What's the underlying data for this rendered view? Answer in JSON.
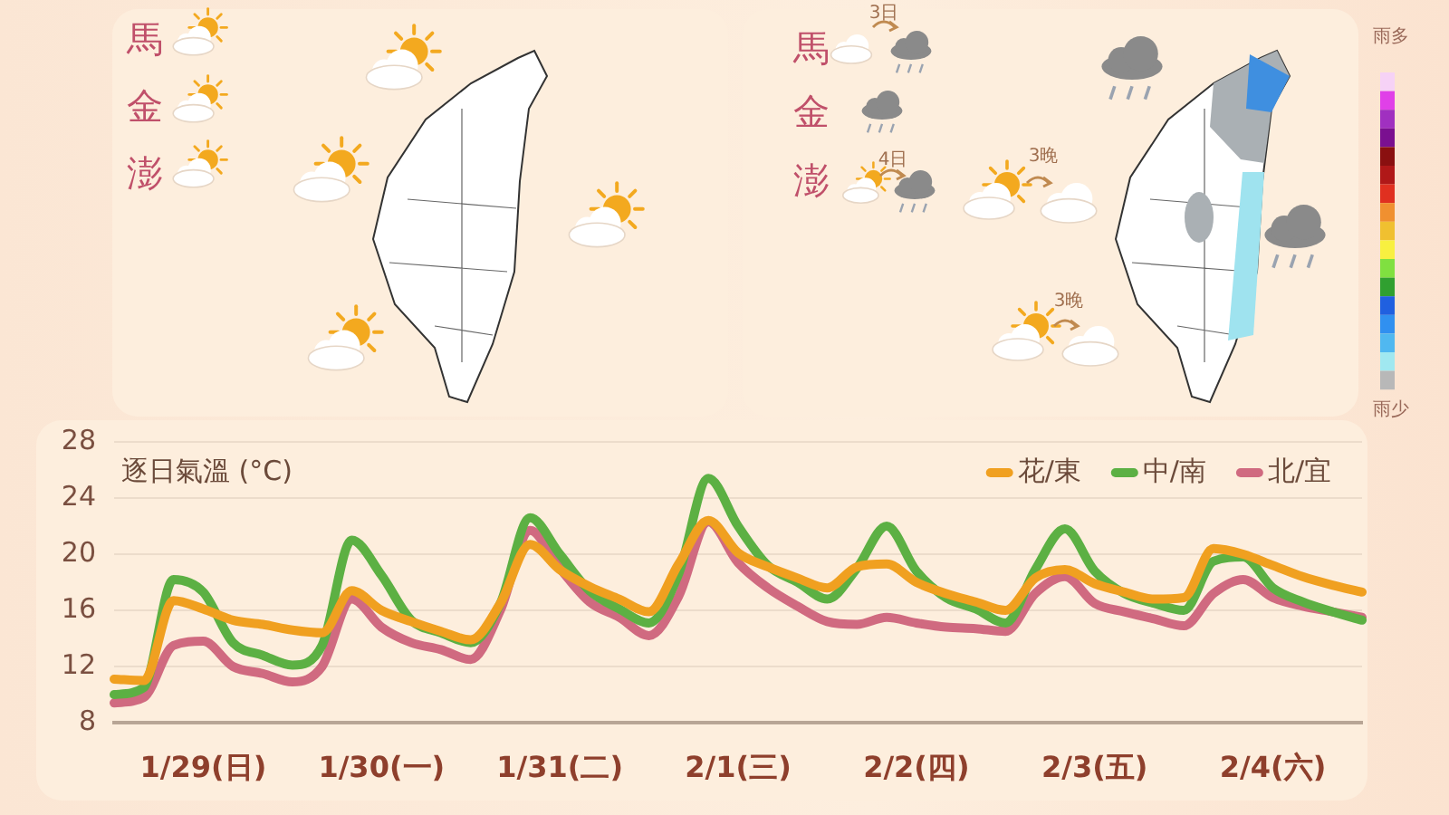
{
  "chart_data": {
    "type": "line",
    "ylabel": "逐日氣溫 (°C)",
    "categories": [
      null,
      null,
      null,
      "1/29(日)",
      null,
      null,
      null,
      null,
      null,
      "1/30(一)",
      null,
      null,
      null,
      null,
      null,
      "1/31(二)",
      null,
      null,
      null,
      null,
      null,
      "2/1(三)",
      null,
      null,
      null,
      null,
      null,
      "2/2(四)",
      null,
      null,
      null,
      null,
      null,
      "2/3(五)",
      null,
      null,
      null,
      null,
      null,
      "2/4(六)",
      null,
      null,
      null
    ],
    "ylim": [
      8,
      28
    ],
    "yticks": [
      8,
      12,
      16,
      20,
      24,
      28
    ],
    "grid": "y",
    "legend": "top right",
    "marker": "none",
    "line_style": "solid",
    "annotations": [
      "馬",
      "金",
      "澎",
      "馬",
      "金",
      "澎",
      "3日",
      "4日",
      "3晚",
      "3晚",
      "雨多",
      "雨少"
    ],
    "series": [
      {
        "name": "花/東",
        "color": "#f0a020",
        "values": [
          11.1,
          11.0,
          16.7,
          16.1,
          15.3,
          15.0,
          14.6,
          14.4,
          17.4,
          16.0,
          15.2,
          14.5,
          13.9,
          16.5,
          20.7,
          18.9,
          17.7,
          16.8,
          15.9,
          19.3,
          22.4,
          20.1,
          19.1,
          18.3,
          17.6,
          19.1,
          19.3,
          18.0,
          17.2,
          16.6,
          16.0,
          18.3,
          18.9,
          17.9,
          17.3,
          16.8,
          16.9,
          20.4,
          20.0,
          19.2,
          18.4,
          17.8,
          17.3
        ]
      },
      {
        "name": "中/南",
        "color": "#5cb043",
        "values": [
          10.0,
          10.5,
          18.2,
          17.3,
          13.7,
          12.8,
          12.1,
          13.5,
          21.0,
          18.5,
          15.3,
          14.4,
          13.7,
          16.5,
          22.6,
          20.0,
          17.4,
          16.1,
          15.1,
          18.6,
          25.4,
          22.0,
          19.2,
          18.0,
          16.8,
          19.0,
          22.0,
          18.8,
          16.9,
          16.1,
          15.1,
          18.9,
          21.8,
          18.8,
          17.2,
          16.5,
          16.0,
          19.5,
          19.8,
          17.6,
          16.6,
          15.9,
          15.3
        ]
      },
      {
        "name": "北/宜",
        "color": "#d06a80",
        "values": [
          9.4,
          9.8,
          13.5,
          13.8,
          12.0,
          11.5,
          10.9,
          12.0,
          16.8,
          14.8,
          13.7,
          13.2,
          12.5,
          16.0,
          21.7,
          19.0,
          16.6,
          15.5,
          14.2,
          17.0,
          22.3,
          19.4,
          17.6,
          16.3,
          15.2,
          15.0,
          15.5,
          15.1,
          14.8,
          14.7,
          14.5,
          17.2,
          18.4,
          16.5,
          15.9,
          15.4,
          14.9,
          17.2,
          18.2,
          16.9,
          16.3,
          15.9,
          15.5
        ]
      }
    ]
  }
}
